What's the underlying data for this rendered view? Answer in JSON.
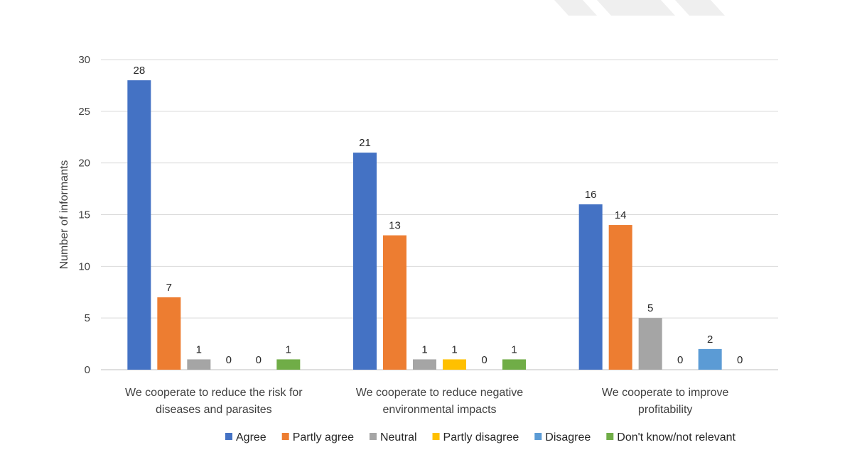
{
  "chart_data": {
    "type": "bar",
    "title": "",
    "xlabel": "",
    "ylabel": "Number of informants",
    "ylim": [
      0,
      30
    ],
    "yticks": [
      0,
      5,
      10,
      15,
      20,
      25,
      30
    ],
    "grid": true,
    "legend_position": "bottom",
    "categories": [
      [
        "We cooperate to reduce the risk for",
        "diseases and parasites"
      ],
      [
        "We cooperate to reduce negative",
        "environmental impacts"
      ],
      [
        "We cooperate to improve",
        "profitability"
      ]
    ],
    "series": [
      {
        "name": "Agree",
        "color": "#4472C4",
        "values": [
          28,
          21,
          16
        ],
        "labels": [
          "28",
          "21",
          "16"
        ]
      },
      {
        "name": "Partly agree",
        "color": "#ED7D31",
        "values": [
          7,
          13,
          14
        ],
        "labels": [
          "7",
          "13",
          "14"
        ]
      },
      {
        "name": "Neutral",
        "color": "#A5A5A5",
        "values": [
          1,
          1,
          5
        ],
        "labels": [
          "1",
          "1",
          "5"
        ]
      },
      {
        "name": "Partly disagree",
        "color": "#FFC000",
        "values": [
          0,
          1,
          0
        ],
        "labels": [
          "0",
          "1",
          "0"
        ]
      },
      {
        "name": "Disagree",
        "color": "#5B9BD5",
        "values": [
          0,
          0,
          2
        ],
        "labels": [
          "0",
          "0",
          "2"
        ]
      },
      {
        "name": "Don't know/not relevant",
        "color": "#70AD47",
        "values": [
          1,
          1,
          0
        ],
        "labels": [
          "1",
          "1",
          "0"
        ]
      }
    ]
  }
}
